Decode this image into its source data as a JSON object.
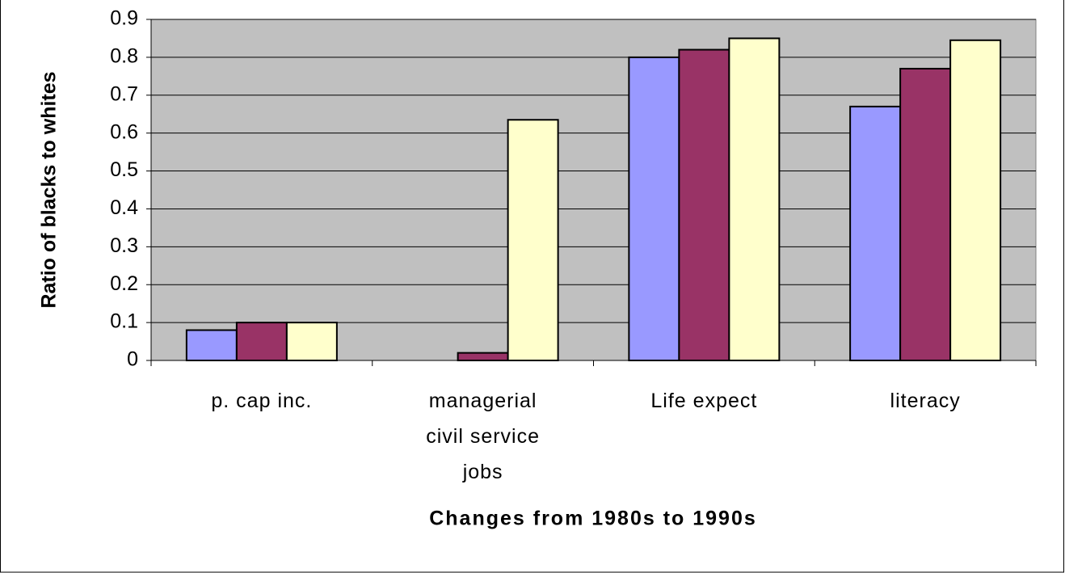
{
  "chart_data": {
    "type": "bar",
    "x_label": "Changes from 1980s to 1990s",
    "y_label": "Ratio of blacks to whites",
    "categories": [
      "p. cap inc.",
      "managerial civil service jobs",
      "Life expect",
      "literacy"
    ],
    "series": [
      {
        "color": "#9999ff",
        "values": [
          0.08,
          0,
          0.8,
          0.67
        ]
      },
      {
        "color": "#993366",
        "values": [
          0.1,
          0.02,
          0.82,
          0.77
        ]
      },
      {
        "color": "#ffffcc",
        "values": [
          0.1,
          0.635,
          0.85,
          0.845
        ]
      }
    ],
    "ylim": [
      0,
      0.9
    ],
    "yticks": [
      0,
      0.1,
      0.2,
      0.3,
      0.4,
      0.5,
      0.6,
      0.7,
      0.8,
      0.9
    ],
    "grid": true,
    "plot_background": "#c0c0c0"
  }
}
